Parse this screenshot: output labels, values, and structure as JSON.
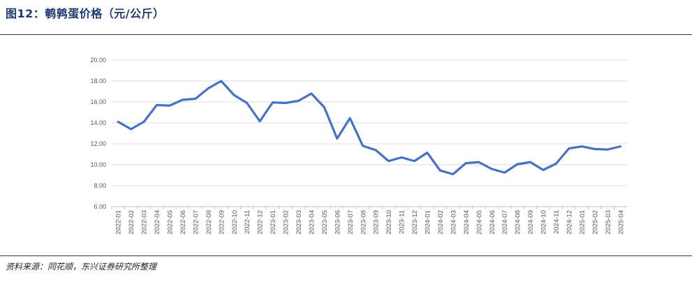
{
  "header": {
    "title": "图12：鹌鹑蛋价格（元/公斤）"
  },
  "footer": {
    "source": "资料来源：同花顺，东兴证券研究所整理"
  },
  "chart_data": {
    "type": "line",
    "title": "",
    "xlabel": "",
    "ylabel": "",
    "ylim": [
      6,
      20
    ],
    "yticks": [
      "6.00",
      "8.00",
      "10.00",
      "12.00",
      "14.00",
      "16.00",
      "18.00",
      "20.00"
    ],
    "grid": true,
    "color": "#4472c4",
    "x": [
      "2022-01",
      "2022-02",
      "2022-03",
      "2022-04",
      "2022-05",
      "2022-06",
      "2022-07",
      "2022-08",
      "2022-09",
      "2022-10",
      "2022-11",
      "2022-12",
      "2023-01",
      "2023-02",
      "2023-03",
      "2023-04",
      "2023-05",
      "2023-06",
      "2023-07",
      "2023-08",
      "2023-09",
      "2023-10",
      "2023-11",
      "2023-12",
      "2024-01",
      "2024-02",
      "2024-03",
      "2024-04",
      "2024-05",
      "2024-06",
      "2024-07",
      "2024-08",
      "2024-09",
      "2024-10",
      "2024-11",
      "2024-12",
      "2025-01",
      "2025-02",
      "2025-03",
      "2025-04"
    ],
    "series": [
      {
        "values": [
          14.1,
          13.4,
          14.1,
          15.7,
          15.65,
          16.2,
          16.3,
          17.3,
          18.0,
          16.65,
          15.9,
          14.15,
          15.95,
          15.9,
          16.1,
          16.8,
          15.5,
          12.5,
          14.45,
          11.8,
          11.4,
          10.35,
          10.7,
          10.35,
          11.15,
          9.45,
          9.1,
          10.15,
          10.25,
          9.6,
          9.25,
          10.05,
          10.25,
          9.5,
          10.1,
          11.55,
          11.75,
          11.5,
          11.45,
          11.75
        ]
      }
    ]
  }
}
